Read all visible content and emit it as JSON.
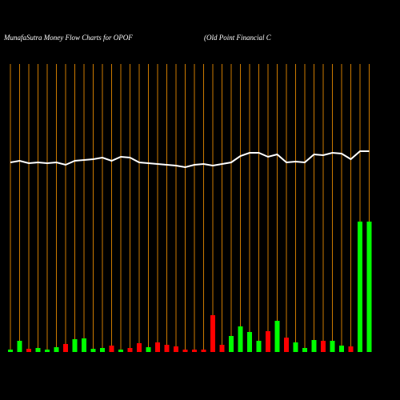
{
  "chart_data": {
    "type": "bar-line",
    "title": "MunafaSutra  Money Flow  Charts for OPOF",
    "subtitle": "(Old Point Financial C",
    "categories": [
      null,
      null,
      null,
      null,
      null,
      null,
      null,
      null,
      null,
      null,
      null,
      null,
      null,
      null,
      null,
      null,
      null,
      null,
      null,
      null,
      null,
      null,
      null,
      null,
      null,
      null,
      null,
      null,
      null,
      null,
      null,
      null,
      null,
      null,
      null,
      null,
      null,
      null,
      null,
      null
    ],
    "ylim": [
      0,
      360
    ],
    "series": [
      {
        "type": "bar",
        "values": [
          3,
          14,
          4,
          5,
          3,
          6,
          10,
          16,
          17,
          4,
          5,
          8,
          3,
          5,
          11,
          6,
          12,
          9,
          7,
          3,
          3,
          3,
          46,
          9,
          20,
          32,
          25,
          14,
          26,
          39,
          18,
          12,
          5,
          15,
          14,
          14,
          8,
          7,
          163,
          163
        ],
        "colors": [
          "#00ff00",
          "#00ff00",
          "#ff0000",
          "#00ff00",
          "#00ff00",
          "#00ff00",
          "#ff0000",
          "#00ff00",
          "#00ff00",
          "#00ff00",
          "#00ff00",
          "#ff0000",
          "#00ff00",
          "#ff0000",
          "#ff0000",
          "#00ff00",
          "#ff0000",
          "#ff0000",
          "#ff0000",
          "#ff0000",
          "#ff0000",
          "#ff0000",
          "#ff0000",
          "#ff0000",
          "#00ff00",
          "#00ff00",
          "#00ff00",
          "#00ff00",
          "#ff0000",
          "#00ff00",
          "#ff0000",
          "#00ff00",
          "#00ff00",
          "#00ff00",
          "#ff0000",
          "#00ff00",
          "#00ff00",
          "#ff0000",
          "#00ff00",
          "#00ff00"
        ]
      },
      {
        "type": "line",
        "color": "#ffffff",
        "values": [
          237,
          239,
          236,
          237,
          236,
          237,
          234,
          239,
          240,
          241,
          243,
          239,
          244,
          243,
          237,
          236,
          235,
          234,
          233,
          231,
          234,
          235,
          233,
          235,
          237,
          245,
          249,
          249,
          244,
          247,
          237,
          238,
          237,
          247,
          246,
          249,
          248,
          241,
          251,
          251
        ]
      }
    ],
    "grid_color": "#cc7a00"
  }
}
